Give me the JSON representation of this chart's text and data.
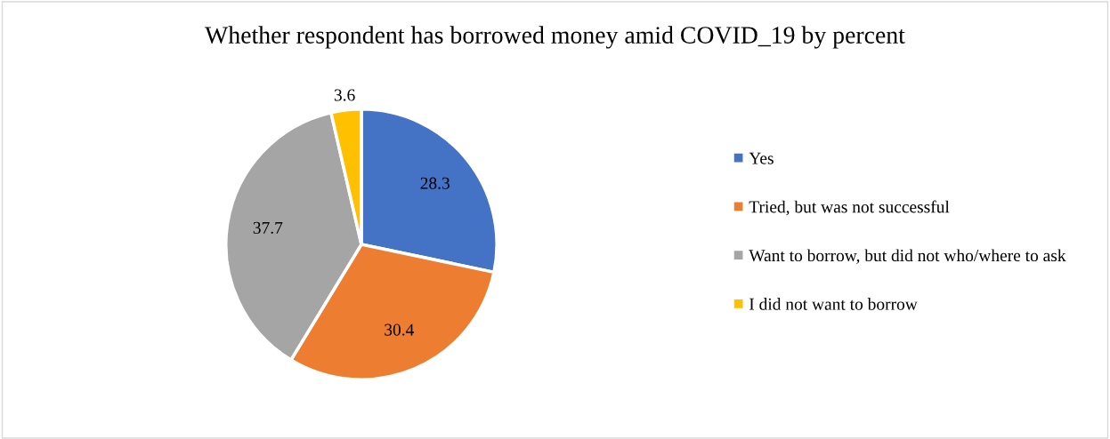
{
  "chart_data": {
    "type": "pie",
    "title": "Whether respondent has borrowed money amid COVID_19 by percent",
    "categories": [
      "Yes",
      "Tried, but was not successful",
      "Want to borrow, but did not who/where to ask",
      "I did not want to borrow"
    ],
    "values": [
      28.3,
      30.4,
      37.7,
      3.6
    ],
    "colors": [
      "#4472c4",
      "#ed7d31",
      "#a5a5a5",
      "#ffc000"
    ],
    "data_labels": true,
    "legend": "right"
  }
}
